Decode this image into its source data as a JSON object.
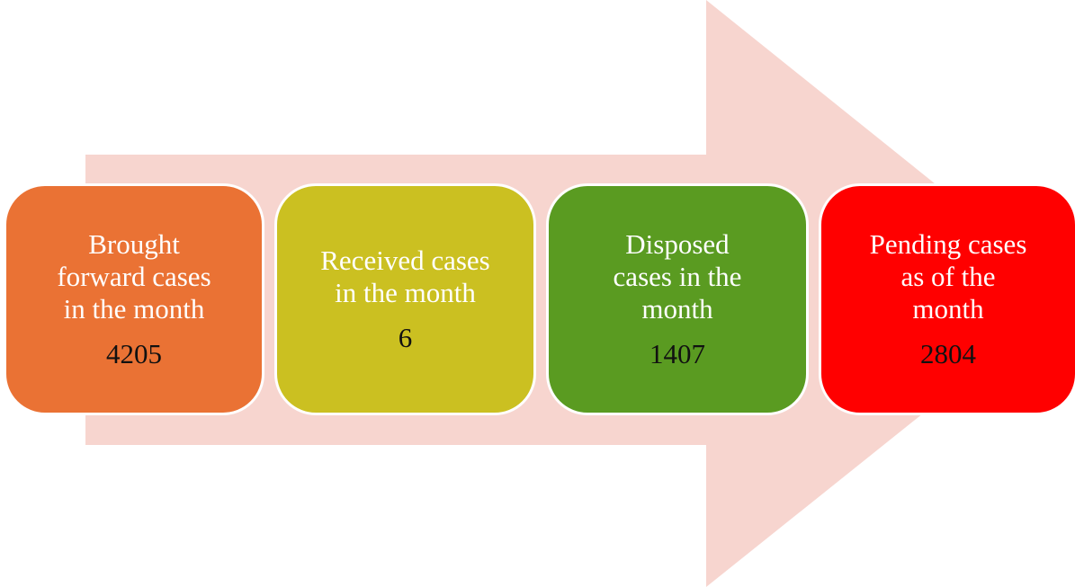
{
  "nodes": [
    {
      "label": [
        "Brought",
        "forward cases",
        "in the month"
      ],
      "value": 4205
    },
    {
      "label": [
        "Received cases",
        "in the month"
      ],
      "value": 6
    },
    {
      "label": [
        "Disposed",
        "cases in the",
        "month"
      ],
      "value": 1407
    },
    {
      "label": [
        "Pending cases",
        "as of the",
        "month"
      ],
      "value": 2804
    }
  ]
}
